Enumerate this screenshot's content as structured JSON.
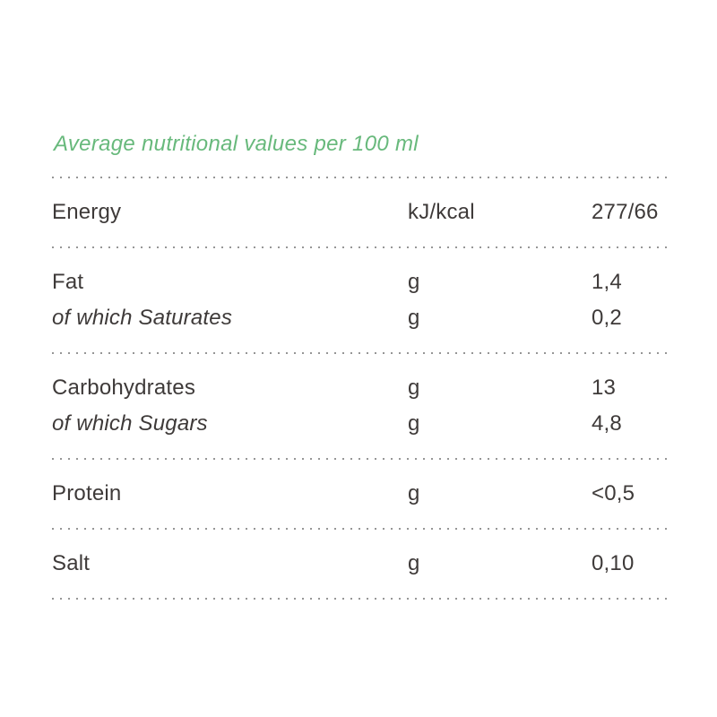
{
  "colors": {
    "accent_green": "#68b97c",
    "text": "#3e3a39",
    "dotted_line": "#969696",
    "background": "#ffffff"
  },
  "title": "Average nutritional values per 100 ml",
  "table": {
    "sections": [
      {
        "rows": [
          {
            "label": "Energy",
            "unit": "kJ/kcal",
            "value": "277/66"
          }
        ]
      },
      {
        "rows": [
          {
            "label": "Fat",
            "unit": "g",
            "value": "1,4"
          },
          {
            "label": "of which Saturates",
            "unit": "g",
            "value": "0,2"
          }
        ]
      },
      {
        "rows": [
          {
            "label": "Carbohydrates",
            "unit": "g",
            "value": "13"
          },
          {
            "label": "of which Sugars",
            "unit": "g",
            "value": "4,8"
          }
        ]
      },
      {
        "rows": [
          {
            "label": "Protein",
            "unit": "g",
            "value": "<0,5"
          }
        ]
      },
      {
        "rows": [
          {
            "label": "Salt",
            "unit": "g",
            "value": "0,10"
          }
        ]
      }
    ]
  }
}
